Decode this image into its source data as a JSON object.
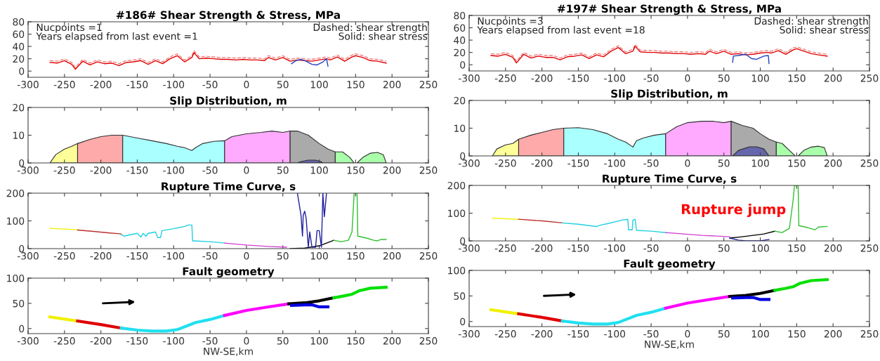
{
  "chart_data": [
    {
      "type": "line",
      "title": "#186# Shear Strength & Stress, MPa",
      "xlim": [
        -300,
        250
      ],
      "xticks": [
        -300,
        -250,
        -200,
        -150,
        -100,
        -50,
        0,
        50,
        100,
        150,
        200,
        250
      ],
      "ylim": [
        -10,
        80
      ],
      "yticks": [
        0,
        20,
        40,
        60,
        80
      ],
      "annotations": [
        "Nucpoints =1",
        "Years elapsed from last event =1",
        "Dashed: shear strength",
        "Solid: shear stress"
      ],
      "series": [
        {
          "color": "#f08080",
          "line_style": "dashed",
          "x": [
            -270,
            -260,
            -250,
            -240,
            -235,
            -225,
            -215,
            -205,
            -195,
            -185,
            -175,
            -165,
            -155,
            -145,
            -135,
            -125,
            -115,
            -105,
            -95,
            -85,
            -75,
            -72,
            -65,
            -55,
            -45,
            -35,
            -25,
            -15,
            -5,
            5,
            15,
            25,
            30,
            40,
            50,
            60,
            70,
            80,
            90,
            100,
            110,
            115,
            125,
            135,
            145,
            150,
            160,
            170,
            180,
            192
          ],
          "values": [
            17,
            16,
            20,
            14,
            6,
            19,
            13,
            18,
            15,
            16,
            12,
            17,
            18,
            20,
            14,
            20,
            15,
            23,
            28,
            18,
            25,
            33,
            23,
            24,
            23,
            22,
            22,
            21,
            22,
            21,
            21,
            20,
            25,
            21,
            25,
            19,
            21,
            20,
            19,
            21,
            23,
            21,
            26,
            19,
            26,
            28,
            25,
            20,
            19,
            16
          ]
        },
        {
          "color": "#e00000",
          "line_style": "solid",
          "x": [
            -270,
            -260,
            -250,
            -240,
            -235,
            -225,
            -215,
            -205,
            -195,
            -185,
            -175,
            -165,
            -155,
            -145,
            -135,
            -125,
            -115,
            -105,
            -95,
            -85,
            -75,
            -72,
            -65,
            -55,
            -45,
            -35,
            -25,
            -15,
            -5,
            5,
            15,
            25,
            30,
            40,
            50,
            60,
            70,
            80,
            90,
            100,
            110,
            115,
            125,
            135,
            145,
            150,
            160,
            170,
            180,
            192
          ],
          "values": [
            14,
            13,
            17,
            11,
            3,
            16,
            10,
            15,
            12,
            13,
            9,
            14,
            15,
            17,
            11,
            17,
            12,
            20,
            25,
            15,
            22,
            30,
            20,
            21,
            20,
            19,
            19,
            18,
            19,
            18,
            18,
            17,
            22,
            18,
            22,
            16,
            18,
            17,
            16,
            18,
            20,
            18,
            23,
            16,
            23,
            25,
            22,
            17,
            16,
            13
          ]
        },
        {
          "color": "#2040c0",
          "line_style": "solid",
          "x": [
            62,
            68,
            75,
            82,
            90,
            97,
            104,
            110,
            112
          ],
          "values": [
            12,
            17,
            19,
            16,
            11,
            10,
            14,
            20,
            8
          ]
        }
      ]
    },
    {
      "type": "area",
      "title": "Slip Distribution, m",
      "xlim": [
        -300,
        250
      ],
      "xticks": [
        -300,
        -250,
        -200,
        -150,
        -100,
        -50,
        0,
        50,
        100,
        150,
        200,
        250
      ],
      "ylim": [
        0,
        20
      ],
      "yticks": [
        0,
        10,
        20
      ],
      "series": [
        {
          "color": "#ffff99",
          "x": [
            -270,
            -262,
            -250,
            -240,
            -232
          ],
          "values": [
            0,
            3,
            5,
            6,
            7
          ]
        },
        {
          "color": "#ffaaaa",
          "x": [
            -232,
            -215,
            -200,
            -185,
            -170
          ],
          "values": [
            7,
            8.5,
            9.5,
            10,
            10
          ]
        },
        {
          "color": "#aaffff",
          "x": [
            -170,
            -150,
            -130,
            -110,
            -95,
            -85,
            -75,
            -70,
            -60,
            -45,
            -30
          ],
          "values": [
            10,
            9,
            8,
            7,
            6,
            5.5,
            4.5,
            5.5,
            7,
            7.8,
            8
          ]
        },
        {
          "color": "#ffaaff",
          "x": [
            -30,
            -20,
            0,
            20,
            35,
            50,
            60
          ],
          "values": [
            8,
            9.5,
            10.5,
            11,
            11.5,
            11,
            11.5
          ]
        },
        {
          "color": "#aaaaaa",
          "x": [
            60,
            70,
            85,
            100,
            112,
            122
          ],
          "values": [
            11.5,
            11.5,
            10,
            7,
            5,
            4
          ]
        },
        {
          "color": "#6666aa",
          "x": [
            70,
            75,
            85,
            95,
            102,
            105
          ],
          "values": [
            0,
            0.5,
            1,
            1,
            0.5,
            0
          ]
        },
        {
          "color": "#aaffaa",
          "x": [
            122,
            132,
            142,
            148
          ],
          "values": [
            4,
            4,
            2,
            0
          ]
        },
        {
          "color": "#aaffaa",
          "x": [
            152,
            160,
            170,
            180,
            188,
            192
          ],
          "values": [
            0,
            2,
            3.5,
            3.8,
            3,
            0
          ]
        }
      ]
    },
    {
      "type": "line",
      "title": "Rupture Time Curve, s",
      "xlim": [
        -300,
        250
      ],
      "xticks": [
        -300,
        -250,
        -200,
        -150,
        -100,
        -50,
        0,
        50,
        100,
        150,
        200,
        250
      ],
      "ylim": [
        0,
        200
      ],
      "yticks": [
        0,
        100,
        200
      ],
      "series": [
        {
          "color": "#f0f000",
          "x": [
            -270,
            -232
          ],
          "values": [
            73,
            68
          ]
        },
        {
          "color": "#c03030",
          "x": [
            -232,
            -210,
            -190,
            -172
          ],
          "values": [
            67,
            62,
            57,
            53
          ]
        },
        {
          "color": "#20d0e0",
          "x": [
            -172,
            -168,
            -160,
            -150,
            -145,
            -142,
            -138,
            -135,
            -125,
            -122,
            -118,
            -116,
            -100,
            -85,
            -80,
            -75,
            -74,
            -72,
            -50,
            -30
          ],
          "values": [
            50,
            45,
            50,
            55,
            42,
            55,
            45,
            55,
            60,
            40,
            40,
            65,
            72,
            80,
            85,
            85,
            28,
            28,
            25,
            20
          ]
        },
        {
          "color": "#d040d0",
          "x": [
            -30,
            0,
            30,
            55
          ],
          "values": [
            20,
            13,
            8,
            5
          ]
        },
        {
          "color": "#000000",
          "x": [
            60,
            80,
            100,
            110,
            120
          ],
          "values": [
            0,
            2,
            10,
            20,
            30
          ]
        },
        {
          "color": "#2020a0",
          "x": [
            70,
            75,
            77,
            78,
            80,
            82,
            85,
            87,
            90,
            95,
            97,
            100,
            103,
            105,
            107,
            110
          ],
          "values": [
            200,
            120,
            45,
            120,
            135,
            110,
            5,
            60,
            5,
            5,
            65,
            65,
            5,
            200,
            115,
            200
          ]
        },
        {
          "color": "#30c030",
          "x": [
            120,
            130,
            140,
            145,
            148,
            152,
            153,
            165,
            175,
            180,
            185,
            192
          ],
          "values": [
            30,
            25,
            30,
            60,
            200,
            200,
            45,
            38,
            30,
            28,
            33,
            33
          ]
        }
      ]
    },
    {
      "type": "line",
      "title": "Fault geometry",
      "xlabel": "NW-SE,km",
      "xlim": [
        -300,
        250
      ],
      "xticks": [
        -300,
        -250,
        -200,
        -150,
        -100,
        -50,
        0,
        50,
        100,
        150,
        200,
        250
      ],
      "ylim": [
        -10,
        100
      ],
      "yticks": [
        0,
        50,
        100
      ],
      "series": [
        {
          "color": "#f0f000",
          "x": [
            -270,
            -232
          ],
          "values": [
            23,
            15
          ]
        },
        {
          "color": "#e00000",
          "x": [
            -232,
            -200,
            -172
          ],
          "values": [
            15,
            8,
            1
          ]
        },
        {
          "color": "#20e0f0",
          "x": [
            -172,
            -150,
            -130,
            -110,
            -95,
            -70,
            -50,
            -30
          ],
          "values": [
            1,
            -3,
            -5,
            -5,
            -2,
            12,
            18,
            26
          ]
        },
        {
          "color": "#ff00ff",
          "x": [
            -30,
            0,
            30,
            58
          ],
          "values": [
            26,
            36,
            43,
            49
          ]
        },
        {
          "color": "#000000",
          "x": [
            58,
            80,
            100,
            120
          ],
          "values": [
            49,
            51,
            55,
            61
          ]
        },
        {
          "color": "#0000e0",
          "x": [
            62,
            80,
            90,
            100,
            112
          ],
          "values": [
            46,
            47,
            47,
            43,
            43
          ]
        },
        {
          "color": "#00e000",
          "x": [
            120,
            135,
            145,
            155,
            170,
            192
          ],
          "values": [
            61,
            65,
            68,
            75,
            80,
            82
          ]
        }
      ]
    },
    {
      "type": "line",
      "title": "#197# Shear Strength & Stress, MPa",
      "xlim": [
        -300,
        250
      ],
      "xticks": [
        -300,
        -250,
        -200,
        -150,
        -100,
        -50,
        0,
        50,
        100,
        150,
        200,
        250
      ],
      "ylim": [
        -10,
        80
      ],
      "yticks": [
        0,
        20,
        40,
        60,
        80
      ],
      "annotations": [
        "Nucpoints =3",
        "Years elapsed from last event =18",
        "Dashed: shear strength",
        "Solid: shear stress"
      ],
      "series": [
        {
          "color": "#f08080",
          "line_style": "dashed",
          "x": [
            -270,
            -260,
            -250,
            -240,
            -235,
            -225,
            -215,
            -205,
            -195,
            -185,
            -175,
            -165,
            -155,
            -145,
            -135,
            -125,
            -115,
            -105,
            -95,
            -85,
            -75,
            -72,
            -65,
            -55,
            -45,
            -35,
            -25,
            -15,
            -5,
            5,
            15,
            25,
            30,
            40,
            50,
            60,
            70,
            80,
            90,
            100,
            110,
            115,
            125,
            135,
            145,
            150,
            160,
            170,
            180,
            192
          ],
          "values": [
            18,
            17,
            20,
            15,
            6,
            20,
            14,
            17,
            15,
            15,
            11,
            16,
            17,
            19,
            13,
            19,
            16,
            25,
            31,
            21,
            25,
            33,
            24,
            23,
            23,
            22,
            22,
            21,
            21,
            20,
            21,
            20,
            25,
            21,
            25,
            20,
            21,
            19,
            20,
            22,
            23,
            22,
            26,
            20,
            27,
            29,
            25,
            21,
            19,
            17
          ]
        },
        {
          "color": "#e00000",
          "line_style": "solid",
          "x": [
            -270,
            -260,
            -250,
            -240,
            -235,
            -225,
            -215,
            -205,
            -195,
            -185,
            -175,
            -165,
            -155,
            -145,
            -135,
            -125,
            -115,
            -105,
            -95,
            -85,
            -75,
            -72,
            -65,
            -55,
            -45,
            -35,
            -25,
            -15,
            -5,
            5,
            15,
            25,
            30,
            40,
            50,
            60,
            70,
            80,
            90,
            100,
            110,
            115,
            125,
            135,
            145,
            150,
            160,
            170,
            180,
            192
          ],
          "values": [
            15,
            14,
            17,
            12,
            3,
            17,
            11,
            14,
            12,
            12,
            8,
            13,
            14,
            16,
            10,
            16,
            13,
            22,
            28,
            18,
            22,
            30,
            21,
            20,
            20,
            19,
            19,
            18,
            18,
            17,
            18,
            17,
            22,
            18,
            22,
            17,
            18,
            16,
            17,
            19,
            20,
            19,
            23,
            17,
            24,
            26,
            22,
            18,
            16,
            14
          ]
        },
        {
          "color": "#2040c0",
          "line_style": "solid",
          "x": [
            62,
            63,
            70,
            80,
            88,
            95,
            105,
            111,
            112
          ],
          "values": [
            4,
            14,
            15,
            17,
            10,
            9,
            14,
            15,
            2
          ]
        }
      ]
    },
    {
      "type": "area",
      "title": "Slip Distribution, m",
      "xlim": [
        -300,
        250
      ],
      "xticks": [
        -300,
        -250,
        -200,
        -150,
        -100,
        -50,
        0,
        50,
        100,
        150,
        200,
        250
      ],
      "ylim": [
        0,
        20
      ],
      "yticks": [
        0,
        10,
        20
      ],
      "series": [
        {
          "color": "#ffff99",
          "x": [
            -268,
            -262,
            -250,
            -240,
            -232
          ],
          "values": [
            0,
            2.5,
            4,
            4.5,
            6
          ]
        },
        {
          "color": "#ffaaaa",
          "x": [
            -232,
            -215,
            -200,
            -185,
            -170
          ],
          "values": [
            6,
            7.5,
            8.5,
            9.5,
            10
          ]
        },
        {
          "color": "#aaffff",
          "x": [
            -170,
            -150,
            -130,
            -110,
            -95,
            -85,
            -75,
            -70,
            -60,
            -45,
            -30
          ],
          "values": [
            10,
            10.2,
            9.5,
            8,
            6,
            5,
            3.2,
            5.5,
            6.5,
            7.5,
            8
          ]
        },
        {
          "color": "#ffaaff",
          "x": [
            -30,
            -15,
            0,
            20,
            35,
            50,
            60
          ],
          "values": [
            8,
            10.5,
            12,
            12.5,
            12.5,
            12,
            12.5
          ]
        },
        {
          "color": "#aaaaaa",
          "x": [
            60,
            75,
            90,
            100,
            112,
            122
          ],
          "values": [
            12.5,
            11,
            10,
            8,
            6,
            5
          ]
        },
        {
          "color": "#6666aa",
          "x": [
            62,
            70,
            85,
            95,
            105,
            112
          ],
          "values": [
            0,
            2,
            3.3,
            3.3,
            2.5,
            0
          ]
        },
        {
          "color": "#aaffaa",
          "x": [
            122,
            130,
            140,
            148
          ],
          "values": [
            5,
            4.5,
            2,
            0
          ]
        },
        {
          "color": "#aaffaa",
          "x": [
            152,
            160,
            170,
            180,
            188,
            192
          ],
          "values": [
            0,
            2,
            3.2,
            3.5,
            3,
            0
          ]
        }
      ]
    },
    {
      "type": "line",
      "title": "Rupture Time Curve, s",
      "xlim": [
        -300,
        250
      ],
      "xticks": [
        -300,
        -250,
        -200,
        -150,
        -100,
        -50,
        0,
        50,
        100,
        150,
        200,
        250
      ],
      "ylim": [
        0,
        200
      ],
      "yticks": [
        0,
        100,
        200
      ],
      "annotations": [
        "Rupture jump"
      ],
      "series": [
        {
          "color": "#f0f000",
          "x": [
            -268,
            -232
          ],
          "values": [
            82,
            78
          ]
        },
        {
          "color": "#c03030",
          "x": [
            -232,
            -200,
            -172
          ],
          "values": [
            78,
            72,
            65
          ]
        },
        {
          "color": "#20d0e0",
          "x": [
            -172,
            -150,
            -125,
            -118,
            -110,
            -90,
            -82,
            -81,
            -76,
            -75,
            -72,
            -70,
            -50,
            -30
          ],
          "values": [
            65,
            60,
            52,
            58,
            62,
            75,
            78,
            40,
            40,
            75,
            78,
            38,
            35,
            30
          ]
        },
        {
          "color": "#d040d0",
          "x": [
            -30,
            20,
            58
          ],
          "values": [
            30,
            20,
            15
          ]
        },
        {
          "color": "#000000",
          "x": [
            58,
            75,
            90,
            105,
            120
          ],
          "values": [
            10,
            15,
            20,
            25,
            35
          ]
        },
        {
          "color": "#2020a0",
          "x": [
            58,
            70,
            80,
            100,
            112
          ],
          "values": [
            10,
            3,
            0,
            0,
            5
          ]
        },
        {
          "color": "#30c030",
          "x": [
            120,
            130,
            140,
            145,
            147,
            152,
            153,
            165,
            175,
            180,
            192
          ],
          "values": [
            35,
            30,
            45,
            145,
            200,
            200,
            55,
            48,
            40,
            50,
            52
          ]
        }
      ]
    },
    {
      "type": "line",
      "title": "Fault geometry",
      "xlabel": "NW-SE,km",
      "xlim": [
        -300,
        250
      ],
      "xticks": [
        -300,
        -250,
        -200,
        -150,
        -100,
        -50,
        0,
        50,
        100,
        150,
        200,
        250
      ],
      "ylim": [
        -10,
        100
      ],
      "yticks": [
        0,
        50,
        100
      ],
      "series": [
        {
          "color": "#f0f000",
          "x": [
            -270,
            -232
          ],
          "values": [
            23,
            15
          ]
        },
        {
          "color": "#e00000",
          "x": [
            -232,
            -200,
            -172
          ],
          "values": [
            15,
            8,
            1
          ]
        },
        {
          "color": "#20e0f0",
          "x": [
            -172,
            -150,
            -130,
            -110,
            -95,
            -70,
            -50,
            -30
          ],
          "values": [
            1,
            -3,
            -5,
            -5,
            -2,
            12,
            18,
            26
          ]
        },
        {
          "color": "#ff00ff",
          "x": [
            -30,
            0,
            30,
            58
          ],
          "values": [
            26,
            36,
            43,
            49
          ]
        },
        {
          "color": "#000000",
          "x": [
            58,
            80,
            100,
            120
          ],
          "values": [
            49,
            51,
            55,
            61
          ]
        },
        {
          "color": "#0000e0",
          "x": [
            62,
            80,
            90,
            100,
            112
          ],
          "values": [
            46,
            47,
            47,
            43,
            43
          ]
        },
        {
          "color": "#00e000",
          "x": [
            120,
            135,
            145,
            155,
            170,
            192
          ],
          "values": [
            61,
            65,
            68,
            75,
            80,
            82
          ]
        }
      ]
    }
  ]
}
